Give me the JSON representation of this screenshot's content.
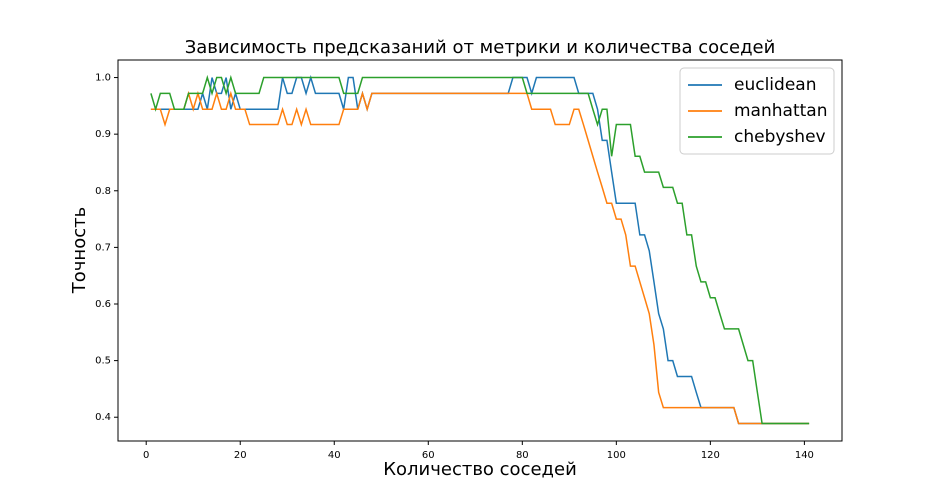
{
  "chart_data": {
    "type": "line",
    "title": "Зависимость предсказаний от метрики и количества соседей",
    "xlabel": "Количество соседей",
    "ylabel": "Точность",
    "x": [
      1,
      2,
      3,
      4,
      5,
      6,
      7,
      8,
      9,
      10,
      11,
      12,
      13,
      14,
      15,
      16,
      17,
      18,
      19,
      20,
      21,
      22,
      23,
      24,
      25,
      26,
      27,
      28,
      29,
      30,
      31,
      32,
      33,
      34,
      35,
      36,
      37,
      38,
      39,
      40,
      41,
      42,
      43,
      44,
      45,
      46,
      47,
      48,
      49,
      50,
      51,
      52,
      53,
      54,
      55,
      56,
      57,
      58,
      59,
      60,
      61,
      62,
      63,
      64,
      65,
      66,
      67,
      68,
      69,
      70,
      71,
      72,
      73,
      74,
      75,
      76,
      77,
      78,
      79,
      80,
      81,
      82,
      83,
      84,
      85,
      86,
      87,
      88,
      89,
      90,
      91,
      92,
      93,
      94,
      95,
      96,
      97,
      98,
      99,
      100,
      101,
      102,
      103,
      104,
      105,
      106,
      107,
      108,
      109,
      110,
      111,
      112,
      113,
      114,
      115,
      116,
      117,
      118,
      119,
      120,
      121,
      122,
      123,
      124,
      125,
      126,
      127,
      128,
      129,
      130,
      131,
      132,
      133,
      134,
      135,
      136,
      137,
      138,
      139,
      140,
      141
    ],
    "series": [
      {
        "name": "euclidean",
        "color": "#1f77b4",
        "values": [
          0.944,
          0.944,
          0.944,
          0.944,
          0.944,
          0.944,
          0.944,
          0.944,
          0.944,
          0.944,
          0.944,
          0.972,
          0.944,
          1.0,
          0.972,
          0.972,
          1.0,
          0.944,
          0.972,
          0.944,
          0.944,
          0.944,
          0.944,
          0.944,
          0.944,
          0.944,
          0.944,
          0.944,
          1.0,
          0.972,
          0.972,
          1.0,
          1.0,
          0.972,
          1.0,
          0.972,
          0.972,
          0.972,
          0.972,
          0.972,
          0.972,
          0.944,
          1.0,
          1.0,
          0.944,
          0.972,
          0.944,
          0.972,
          0.972,
          0.972,
          0.972,
          0.972,
          0.972,
          0.972,
          0.972,
          0.972,
          0.972,
          0.972,
          0.972,
          0.972,
          0.972,
          0.972,
          0.972,
          0.972,
          0.972,
          0.972,
          0.972,
          0.972,
          0.972,
          0.972,
          0.972,
          0.972,
          0.972,
          0.972,
          0.972,
          0.972,
          0.972,
          1.0,
          1.0,
          1.0,
          1.0,
          0.972,
          1.0,
          1.0,
          1.0,
          1.0,
          1.0,
          1.0,
          1.0,
          1.0,
          1.0,
          0.972,
          0.972,
          0.972,
          0.972,
          0.944,
          0.889,
          0.889,
          0.833,
          0.778,
          0.778,
          0.778,
          0.778,
          0.778,
          0.722,
          0.722,
          0.694,
          0.639,
          0.583,
          0.556,
          0.5,
          0.5,
          0.472,
          0.472,
          0.472,
          0.472,
          0.444,
          0.417,
          0.417,
          0.417,
          0.417,
          0.417,
          0.417,
          0.417,
          0.417,
          0.389,
          0.389,
          0.389,
          0.389,
          0.389,
          0.389,
          0.389,
          0.389,
          0.389,
          0.389,
          0.389,
          0.389,
          0.389,
          0.389,
          0.389,
          0.389
        ]
      },
      {
        "name": "manhattan",
        "color": "#ff7f0e",
        "values": [
          0.944,
          0.944,
          0.944,
          0.917,
          0.944,
          0.944,
          0.944,
          0.944,
          0.972,
          0.944,
          0.972,
          0.944,
          0.944,
          0.944,
          0.972,
          0.944,
          0.944,
          0.972,
          0.944,
          0.944,
          0.944,
          0.917,
          0.917,
          0.917,
          0.917,
          0.917,
          0.917,
          0.917,
          0.944,
          0.917,
          0.917,
          0.944,
          0.917,
          0.944,
          0.917,
          0.917,
          0.917,
          0.917,
          0.917,
          0.917,
          0.917,
          0.944,
          0.944,
          0.944,
          0.944,
          0.972,
          0.944,
          0.972,
          0.972,
          0.972,
          0.972,
          0.972,
          0.972,
          0.972,
          0.972,
          0.972,
          0.972,
          0.972,
          0.972,
          0.972,
          0.972,
          0.972,
          0.972,
          0.972,
          0.972,
          0.972,
          0.972,
          0.972,
          0.972,
          0.972,
          0.972,
          0.972,
          0.972,
          0.972,
          0.972,
          0.972,
          0.972,
          0.972,
          0.972,
          0.972,
          0.972,
          0.944,
          0.944,
          0.944,
          0.944,
          0.944,
          0.917,
          0.917,
          0.917,
          0.917,
          0.944,
          0.944,
          0.917,
          0.889,
          0.861,
          0.833,
          0.806,
          0.778,
          0.778,
          0.75,
          0.75,
          0.722,
          0.667,
          0.667,
          0.639,
          0.611,
          0.583,
          0.528,
          0.444,
          0.417,
          0.417,
          0.417,
          0.417,
          0.417,
          0.417,
          0.417,
          0.417,
          0.417,
          0.417,
          0.417,
          0.417,
          0.417,
          0.417,
          0.417,
          0.417,
          0.389,
          0.389,
          0.389,
          0.389,
          0.389,
          0.389,
          0.389,
          0.389,
          0.389,
          0.389,
          0.389,
          0.389,
          0.389,
          0.389,
          0.389,
          0.389
        ]
      },
      {
        "name": "chebyshev",
        "color": "#2ca02c",
        "values": [
          0.972,
          0.944,
          0.972,
          0.972,
          0.972,
          0.944,
          0.944,
          0.944,
          0.972,
          0.972,
          0.972,
          0.972,
          1.0,
          0.972,
          1.0,
          1.0,
          0.972,
          1.0,
          0.972,
          0.972,
          0.972,
          0.972,
          0.972,
          0.972,
          1.0,
          1.0,
          1.0,
          1.0,
          1.0,
          1.0,
          1.0,
          1.0,
          1.0,
          1.0,
          1.0,
          1.0,
          1.0,
          1.0,
          1.0,
          1.0,
          1.0,
          0.972,
          0.972,
          0.972,
          0.972,
          1.0,
          1.0,
          1.0,
          1.0,
          1.0,
          1.0,
          1.0,
          1.0,
          1.0,
          1.0,
          1.0,
          1.0,
          1.0,
          1.0,
          1.0,
          1.0,
          1.0,
          1.0,
          1.0,
          1.0,
          1.0,
          1.0,
          1.0,
          1.0,
          1.0,
          1.0,
          1.0,
          1.0,
          1.0,
          1.0,
          1.0,
          1.0,
          1.0,
          1.0,
          1.0,
          0.972,
          0.972,
          0.972,
          0.972,
          0.972,
          0.972,
          0.972,
          0.972,
          0.972,
          0.972,
          0.972,
          0.972,
          0.972,
          0.972,
          0.944,
          0.917,
          0.944,
          0.944,
          0.861,
          0.917,
          0.917,
          0.917,
          0.917,
          0.861,
          0.861,
          0.833,
          0.833,
          0.833,
          0.833,
          0.806,
          0.806,
          0.806,
          0.778,
          0.778,
          0.722,
          0.722,
          0.667,
          0.639,
          0.639,
          0.611,
          0.611,
          0.583,
          0.556,
          0.556,
          0.556,
          0.556,
          0.528,
          0.5,
          0.5,
          0.444,
          0.389,
          0.389,
          0.389,
          0.389,
          0.389,
          0.389,
          0.389,
          0.389,
          0.389,
          0.389,
          0.389
        ]
      }
    ],
    "xlim": [
      -6,
      148
    ],
    "ylim": [
      0.358,
      1.031
    ],
    "xticks": [
      0,
      20,
      40,
      60,
      80,
      100,
      120,
      140
    ],
    "yticks": [
      0.4,
      0.5,
      0.6,
      0.7,
      0.8,
      0.9,
      {
        "value": 1,
        "label": "1.0"
      }
    ],
    "grid": false,
    "legend": "upper right"
  }
}
